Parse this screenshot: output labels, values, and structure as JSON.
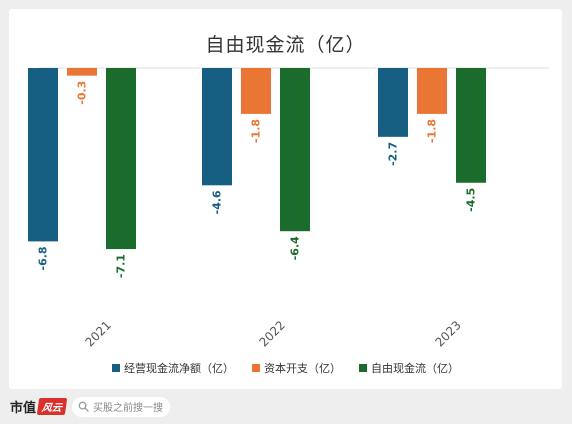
{
  "chart_data": {
    "type": "bar",
    "title": "自由现金流（亿）",
    "categories": [
      "2021",
      "2022",
      "2023"
    ],
    "series": [
      {
        "name": "经营现金流净额（亿）",
        "values": [
          -6.8,
          -4.6,
          -2.7
        ],
        "color": "#175e83"
      },
      {
        "name": "资本开支（亿）",
        "values": [
          -0.3,
          -1.8,
          -1.8
        ],
        "color": "#eb7535"
      },
      {
        "name": "自由现金流（亿）",
        "values": [
          -7.1,
          -6.4,
          -4.5
        ],
        "color": "#1a6b2c"
      }
    ],
    "ylim": [
      -7.6,
      0
    ],
    "grid": false,
    "legend": "bottom"
  },
  "footer": {
    "brand_text": "市值",
    "brand_badge": "风云",
    "search_placeholder": "买股之前搜一搜"
  }
}
